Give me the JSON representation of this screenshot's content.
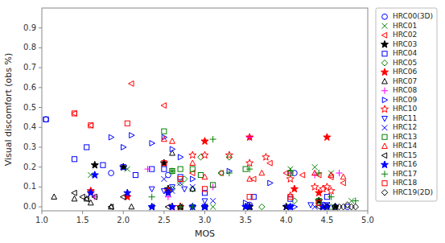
{
  "chart_data": {
    "type": "scatter",
    "xlabel": "MOS",
    "ylabel": "Visual discomfort (obs %)",
    "xlim": [
      1,
      5
    ],
    "ylim": [
      -0.02,
      1.0
    ],
    "xticks": [
      {
        "value": 1,
        "label": "1.0"
      },
      1.5,
      {
        "value": 2,
        "label": "2.0"
      },
      2.5,
      {
        "value": 3,
        "label": "3.0"
      },
      3.5,
      {
        "value": 4,
        "label": "4.0"
      },
      4.5,
      {
        "value": 5,
        "label": "5.0"
      }
    ],
    "yticks": [
      {
        "value": 0.0,
        "label": "0.0"
      },
      0.1,
      0.2,
      0.3,
      0.4,
      0.5,
      0.6,
      0.7,
      0.8,
      0.9
    ],
    "grid": false,
    "legend": "upper right",
    "series": [
      {
        "name": "HRC00(3D)",
        "color": "blue",
        "marker": "circle-open",
        "x": [
          1.05,
          1.85,
          2.55,
          3.55,
          4.1,
          4.45,
          4.6,
          4.75
        ],
        "values": [
          0.44,
          0.17,
          0.16,
          0.01,
          0.17,
          0.01,
          0.0,
          0.0
        ]
      },
      {
        "name": "HRC01",
        "color": "green",
        "marker": "x",
        "x": [
          1.6,
          2.05,
          2.6,
          3.1,
          3.5,
          4.05,
          4.35,
          4.55,
          4.8
        ],
        "values": [
          0.16,
          0.19,
          0.18,
          0.0,
          0.0,
          0.19,
          0.2,
          0.17,
          0.03
        ]
      },
      {
        "name": "HRC02",
        "color": "red",
        "marker": "triangle-left-open",
        "x": [
          1.4,
          1.6,
          2.1,
          2.5,
          2.85,
          3.2,
          3.6,
          3.8,
          4.0,
          4.2,
          4.4,
          4.55,
          4.7
        ],
        "values": [
          0.47,
          0.41,
          0.62,
          0.51,
          0.17,
          0.17,
          0.14,
          0.22,
          0.17,
          0.16,
          0.16,
          0.15,
          0.12
        ]
      },
      {
        "name": "HRC03",
        "color": "black",
        "marker": "star-filled",
        "x": [
          1.65,
          2.0,
          2.5,
          2.55,
          2.7,
          3.0,
          3.55,
          4.0,
          4.4,
          4.6
        ],
        "values": [
          0.21,
          0.2,
          0.22,
          0.09,
          0.0,
          0.0,
          0.0,
          0.0,
          0.03,
          0.0
        ]
      },
      {
        "name": "HRC04",
        "color": "blue",
        "marker": "square-open",
        "x": [
          1.05,
          1.4,
          1.55,
          1.75,
          2.0,
          2.15,
          2.35,
          2.5,
          2.7,
          3.0,
          3.6,
          4.05,
          4.5
        ],
        "values": [
          0.44,
          0.24,
          0.3,
          0.21,
          0.2,
          0.16,
          0.19,
          0.19,
          0.15,
          0.07,
          0.05,
          0.04,
          0.05
        ]
      },
      {
        "name": "HRC05",
        "color": "green",
        "marker": "diamond-open",
        "x": [
          2.6,
          2.7,
          2.75,
          2.85,
          2.95,
          3.2,
          3.3,
          3.7,
          4.1,
          4.4,
          4.55
        ],
        "values": [
          0.09,
          0.12,
          0.14,
          0.09,
          0.25,
          0.17,
          0.25,
          0.0,
          0.03,
          0.02,
          0.0
        ]
      },
      {
        "name": "HRC06",
        "color": "red",
        "marker": "star-filled",
        "x": [
          1.6,
          2.05,
          2.6,
          2.7,
          3.0,
          3.55,
          4.1,
          4.4,
          4.5
        ],
        "values": [
          0.08,
          0.05,
          0.0,
          0.0,
          0.33,
          0.35,
          0.09,
          0.07,
          0.35
        ]
      },
      {
        "name": "HRC07",
        "color": "black",
        "marker": "triangle-up-open",
        "x": [
          1.15,
          1.4,
          1.55,
          1.6,
          1.85,
          2.1,
          2.6,
          2.7,
          2.85,
          3.55,
          4.45
        ],
        "values": [
          0.05,
          0.04,
          0.04,
          0.02,
          0.0,
          0.0,
          0.27,
          0.0,
          0.09,
          0.0,
          0.0
        ]
      },
      {
        "name": "HRC08",
        "color": "magenta",
        "marker": "plus",
        "x": [
          1.65,
          2.3,
          2.55,
          2.6,
          2.7,
          2.85,
          3.1,
          3.55,
          4.05,
          4.35,
          4.65
        ],
        "values": [
          0.05,
          0.19,
          0.05,
          0.0,
          0.0,
          0.0,
          0.1,
          0.35,
          0.17,
          0.16,
          0.17
        ]
      },
      {
        "name": "HRC09",
        "color": "blue",
        "marker": "triangle-right-open",
        "x": [
          1.85,
          2.0,
          2.1,
          2.35,
          2.5,
          2.6,
          2.7,
          2.85,
          3.0,
          3.3,
          3.5,
          3.8,
          4.1
        ],
        "values": [
          0.35,
          0.3,
          0.36,
          0.32,
          0.35,
          0.29,
          0.25,
          0.14,
          0.0,
          0.18,
          0.02,
          0.12,
          0.0
        ]
      },
      {
        "name": "HRC10",
        "color": "red",
        "marker": "star-open",
        "x": [
          2.55,
          2.85,
          3.0,
          3.3,
          3.55,
          3.75,
          4.05,
          4.35,
          4.45,
          4.5,
          4.55
        ],
        "values": [
          0.08,
          0.26,
          0.26,
          0.26,
          0.22,
          0.25,
          0.14,
          0.1,
          0.09,
          0.1,
          0.08
        ]
      },
      {
        "name": "HRC11",
        "color": "blue",
        "marker": "triangle-down-open",
        "x": [
          2.35,
          2.5,
          2.6,
          2.75,
          2.85,
          3.0,
          3.55,
          4.05,
          4.3,
          4.5
        ],
        "values": [
          0.09,
          0.08,
          0.1,
          0.09,
          0.0,
          0.03,
          0.0,
          0.0,
          0.01,
          0.01
        ]
      },
      {
        "name": "HRC12",
        "color": "blue",
        "marker": "x",
        "x": [
          2.5,
          2.6,
          2.7,
          2.85,
          3.0,
          3.1,
          3.55,
          4.0,
          4.35,
          4.5
        ],
        "values": [
          0.14,
          0.08,
          0.12,
          0.1,
          0.0,
          0.03,
          0.0,
          0.0,
          0.0,
          0.01
        ]
      },
      {
        "name": "HRC13",
        "color": "green",
        "marker": "square-open",
        "x": [
          2.5,
          2.6,
          2.7,
          2.85,
          2.95,
          3.1,
          3.5,
          4.05,
          4.4
        ],
        "values": [
          0.38,
          0.18,
          0.19,
          0.19,
          0.16,
          0.11,
          0.19,
          0.17,
          0.03
        ]
      },
      {
        "name": "HRC14",
        "color": "red",
        "marker": "triangle-up-open",
        "x": [
          2.5,
          2.6,
          2.85,
          3.0,
          3.55,
          3.7,
          4.05,
          4.35,
          4.55,
          4.7
        ],
        "values": [
          0.34,
          0.33,
          0.22,
          0.15,
          0.14,
          0.17,
          0.06,
          0.17,
          0.16,
          0.15
        ]
      },
      {
        "name": "HRC15",
        "color": "black",
        "marker": "triangle-left-open",
        "x": [
          1.4,
          1.5,
          1.55,
          1.65,
          1.85,
          2.0,
          2.35,
          2.55,
          2.7,
          3.0,
          4.4
        ],
        "values": [
          0.07,
          0.05,
          0.04,
          0.05,
          0.0,
          0.05,
          0.0,
          0.0,
          0.0,
          0.0,
          0.0
        ]
      },
      {
        "name": "HRC16",
        "color": "blue",
        "marker": "star-filled",
        "x": [
          1.6,
          1.65,
          2.05,
          2.35,
          2.55,
          2.6,
          2.85,
          3.0,
          3.5,
          4.05,
          4.45,
          4.5
        ],
        "values": [
          0.07,
          0.16,
          0.07,
          0.0,
          0.07,
          0.0,
          0.0,
          0.0,
          0.0,
          0.0,
          0.0,
          0.0
        ]
      },
      {
        "name": "HRC17",
        "color": "green",
        "marker": "plus",
        "x": [
          2.35,
          2.6,
          2.7,
          2.85,
          3.1,
          3.3,
          3.55,
          4.05,
          4.4,
          4.55,
          4.85
        ],
        "values": [
          0.05,
          0.18,
          0.0,
          0.0,
          0.34,
          0.17,
          0.19,
          0.18,
          0.17,
          0.05,
          0.03
        ]
      },
      {
        "name": "HRC18",
        "color": "red",
        "marker": "square-open",
        "x": [
          1.4,
          1.6,
          2.05,
          2.5,
          2.7,
          3.0,
          3.55,
          4.05,
          4.4
        ],
        "values": [
          0.47,
          0.41,
          0.42,
          0.22,
          0.14,
          0.09,
          0.05,
          0.05,
          0.02
        ]
      },
      {
        "name": "HRC19(2D)",
        "color": "black",
        "marker": "diamond-open",
        "x": [
          4.5,
          4.6,
          4.65,
          4.7,
          4.75,
          4.8,
          4.85
        ],
        "values": [
          0.0,
          0.0,
          0.0,
          0.0,
          0.01,
          0.0,
          0.0
        ]
      }
    ]
  }
}
